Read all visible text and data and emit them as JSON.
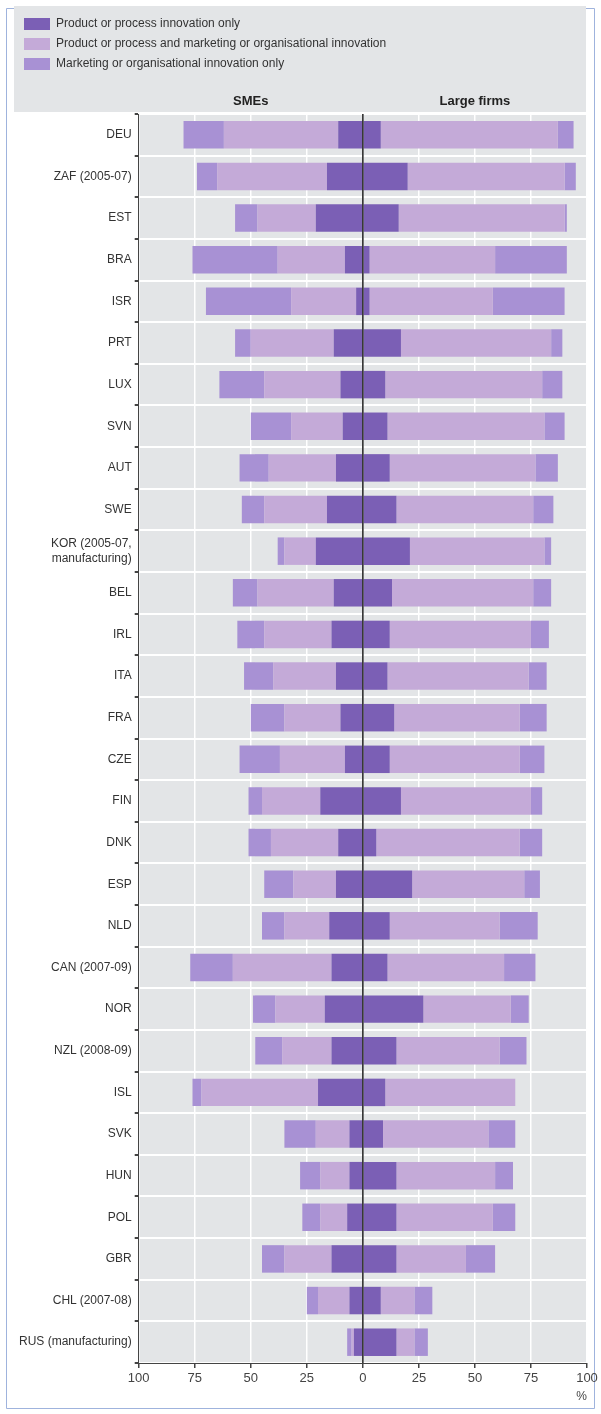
{
  "chart_data": {
    "type": "bar",
    "orientation": "horizontal",
    "stacked": true,
    "grid": true,
    "legend": "top left",
    "xlabel": "%",
    "annotations": [
      "SMEs",
      "Large firms"
    ],
    "categories": [
      "DEU",
      "ZAF (2005-07)",
      "EST",
      "BRA",
      "ISR",
      "PRT",
      "LUX",
      "SVN",
      "AUT",
      "SWE",
      "KOR (2005-07, manufacturing)",
      "BEL",
      "IRL",
      "ITA",
      "FRA",
      "CZE",
      "FIN",
      "DNK",
      "ESP",
      "NLD",
      "CAN (2007-09)",
      "NOR",
      "NZL (2008-09)",
      "ISL",
      "SVK",
      "HUN",
      "POL",
      "GBR",
      "CHL (2007-08)",
      "RUS (manufacturing)"
    ],
    "xlim": [
      -100,
      100
    ],
    "xticks": [
      {
        "value": -100,
        "label": "100"
      },
      {
        "value": -75,
        "label": "75"
      },
      {
        "value": -50,
        "label": "50"
      },
      {
        "value": -25,
        "label": "25"
      },
      0,
      25,
      50,
      75,
      100
    ],
    "series": [
      {
        "name": "Product or process innovation only",
        "color": "#7b5fb5",
        "values": [
          -11,
          -16,
          -21,
          -8,
          -3,
          -13,
          -10,
          -9,
          -12,
          -16,
          -21,
          -13,
          -14,
          -12,
          -10,
          -8,
          -19,
          -11,
          -12,
          -15,
          -14,
          -17,
          -14,
          -20,
          -6,
          -6,
          -7,
          -14,
          -6,
          -4
        ]
      },
      {
        "name": "Product or process and marketing or organisational innovation",
        "color": "#c4aad8",
        "values": [
          -51,
          -49,
          -26,
          -30,
          -29,
          -37,
          -34,
          -23,
          -30,
          -28,
          -14,
          -34,
          -30,
          -28,
          -25,
          -29,
          -26,
          -30,
          -19,
          -20,
          -44,
          -22,
          -22,
          -52,
          -15,
          -13,
          -12,
          -21,
          -14,
          -1
        ]
      },
      {
        "name": "Marketing or organisational innovation only",
        "color": "#a891d4",
        "values": [
          -18,
          -9,
          -10,
          -38,
          -38,
          -7,
          -20,
          -18,
          -13,
          -10,
          -3,
          -11,
          -12,
          -13,
          -15,
          -18,
          -6,
          -10,
          -13,
          -10,
          -19,
          -10,
          -12,
          -4,
          -14,
          -9,
          -8,
          -10,
          -5,
          -2
        ]
      },
      {
        "color": "#7b5fb5",
        "values": [
          8,
          20,
          16,
          3,
          3,
          17,
          10,
          11,
          12,
          15,
          21,
          13,
          12,
          11,
          14,
          12,
          17,
          6,
          22,
          12,
          11,
          27,
          15,
          10,
          9,
          15,
          15,
          15,
          8,
          15
        ]
      },
      {
        "color": "#c4aad8",
        "values": [
          79,
          70,
          74,
          56,
          55,
          67,
          70,
          70,
          65,
          61,
          60,
          63,
          63,
          63,
          56,
          58,
          58,
          64,
          50,
          49,
          52,
          39,
          46,
          58,
          47,
          44,
          43,
          31,
          15,
          8
        ]
      },
      {
        "color": "#a891d4",
        "values": [
          7,
          5,
          1,
          32,
          32,
          5,
          9,
          9,
          10,
          9,
          3,
          8,
          8,
          8,
          12,
          11,
          5,
          10,
          7,
          17,
          14,
          8,
          12,
          0,
          12,
          8,
          10,
          13,
          8,
          6
        ]
      }
    ]
  }
}
